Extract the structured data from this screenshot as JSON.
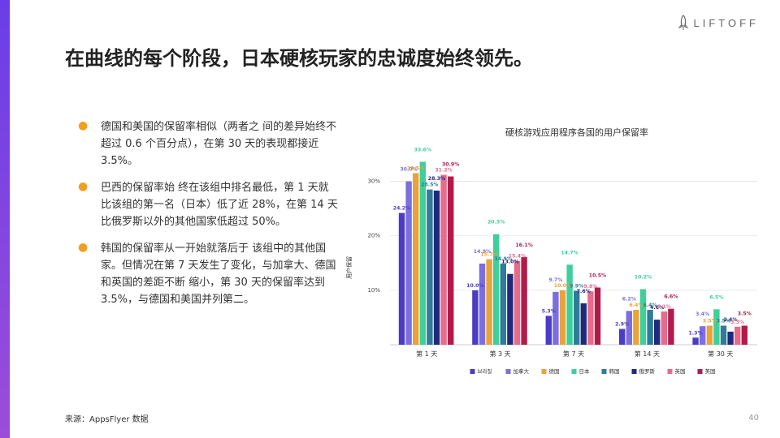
{
  "brand": {
    "name": "LIFTOFF",
    "accent": "#7b45e3"
  },
  "page": {
    "title": "在曲线的每个阶段，日本硬核玩家的忠诚度始终领先。",
    "source": "来源：AppsFlyer 数据",
    "page_number": "40"
  },
  "bullets": [
    "德国和美国的保留率相似（两者之 间的差异始终不超过 0.6 个百分点），在第 30 天的表现都接近 3.5%。",
    "巴西的保留率始 终在该组中排名最低，第 1 天就比该组的第一名（日本）低了近 28%，在第 14 天比俄罗斯以外的其他国家低超过 50%。",
    "韩国的保留率从一开始就落后于 该组中的其他国家。但情况在第 7 天发生了变化，与加拿大、德国和英国的差距不断 缩小，第 30 天的保留率达到 3.5%，与德国和美国并列第二。"
  ],
  "chart_data": {
    "type": "bar",
    "title": "硬核游戏应用程序各国的用户保留率",
    "ylabel": "用户保留",
    "xlabel": "",
    "ylim": [
      0,
      35
    ],
    "yticks": [
      "10%",
      "20%",
      "30%"
    ],
    "grid": true,
    "legend_position": "bottom",
    "categories": [
      "第 1 天",
      "第 3 天",
      "第 7 天",
      "第 14 天",
      "第 30 天"
    ],
    "series": [
      {
        "name": "브라질",
        "color": "#4b3bc7",
        "values": [
          24.2,
          10.0,
          5.3,
          2.9,
          1.3
        ],
        "labels": [
          "24.2%",
          "10.0%",
          "5.3%",
          "2.9%",
          "1.3%"
        ]
      },
      {
        "name": "加拿大",
        "color": "#7b6fdf",
        "values": [
          30.0,
          14.9,
          9.7,
          6.2,
          3.4
        ],
        "labels": [
          "30.0%",
          "14.9%",
          "9.7%",
          "6.2%",
          "3.4%"
        ]
      },
      {
        "name": "德国",
        "color": "#e8a33d",
        "values": [
          31.5,
          15.7,
          10.0,
          6.4,
          3.5
        ],
        "labels": [
          "31.5%",
          "15.7%",
          "10.0%",
          "6.4%",
          "3.5%"
        ]
      },
      {
        "name": "日本",
        "color": "#3fcf9a",
        "values": [
          33.6,
          20.3,
          14.7,
          10.2,
          6.5
        ],
        "labels": [
          "33.6%",
          "20.3%",
          "14.7%",
          "10.2%",
          "6.5%"
        ]
      },
      {
        "name": "韩国",
        "color": "#2e7b9a",
        "values": [
          28.5,
          14.9,
          9.9,
          6.4,
          3.5
        ],
        "labels": [
          "28.5%",
          "14.9%",
          "9.9%",
          "6.4%",
          "3.5%"
        ]
      },
      {
        "name": "俄罗斯",
        "color": "#1f2a7a",
        "values": [
          28.3,
          13.0,
          7.6,
          4.6,
          2.4
        ],
        "labels": [
          "28.3%",
          "13.0%",
          "7.6%",
          "4.6%",
          "2.4%"
        ]
      },
      {
        "name": "英国",
        "color": "#e86b8c",
        "values": [
          31.2,
          15.4,
          9.8,
          6.1,
          3.3
        ],
        "labels": [
          "31.2%",
          "15.4%",
          "9.8%",
          "6.1%",
          "3.3%"
        ]
      },
      {
        "name": "美国",
        "color": "#b01c4a",
        "values": [
          30.9,
          16.1,
          10.5,
          6.6,
          3.5
        ],
        "labels": [
          "30.9%",
          "16.1%",
          "10.5%",
          "6.6%",
          "3.5%"
        ]
      }
    ]
  }
}
